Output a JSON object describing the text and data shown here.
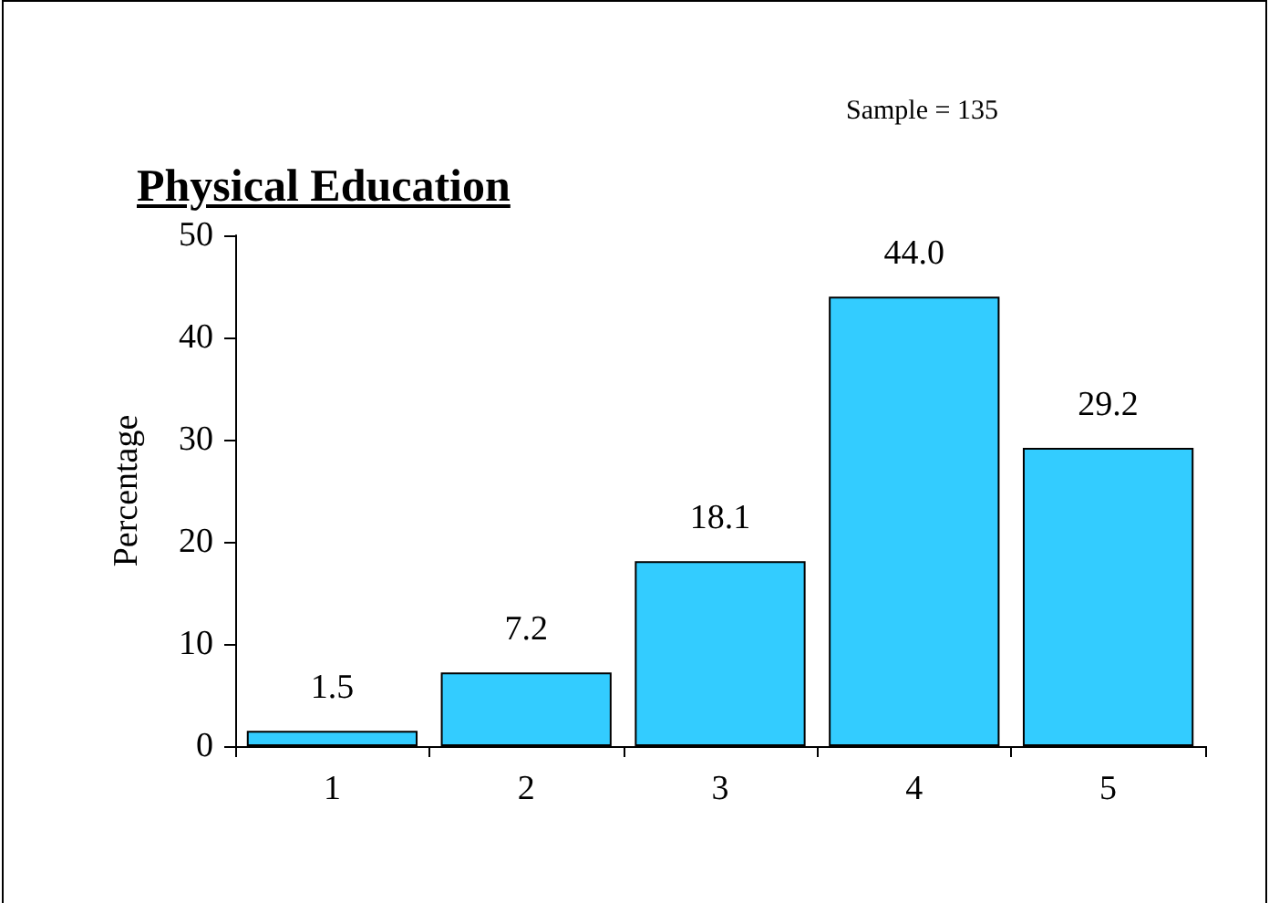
{
  "chart_data": {
    "type": "bar",
    "title": "Physical Education",
    "annotations": [
      "Sample = 135"
    ],
    "ylabel": "Percentage",
    "categories": [
      "1",
      "2",
      "3",
      "4",
      "5"
    ],
    "values": [
      1.5,
      7.2,
      18.1,
      44.0,
      29.2
    ],
    "value_labels": [
      "1.5",
      "7.2",
      "18.1",
      "44.0",
      "29.2"
    ],
    "color": "#33ccff",
    "ylim": [
      0,
      50
    ],
    "yticks": [
      0,
      10,
      20,
      30,
      40,
      50
    ],
    "grid": false
  }
}
